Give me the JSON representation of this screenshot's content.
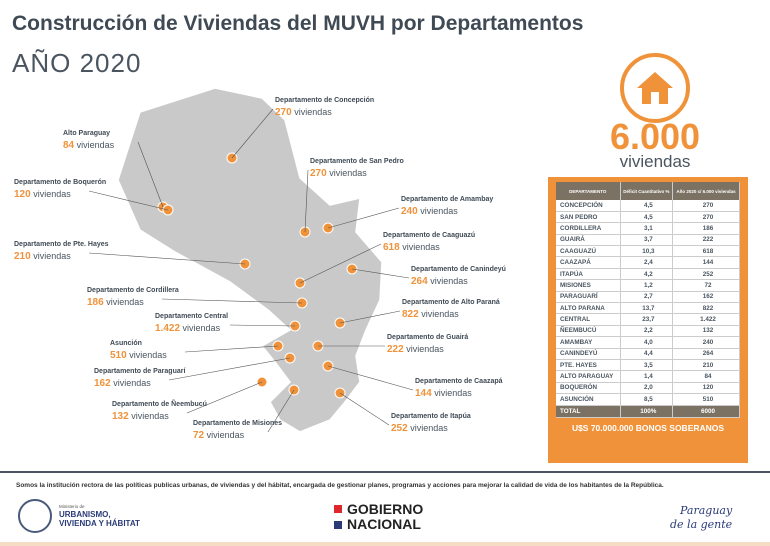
{
  "header": {
    "title": "Construcción de Viviendas del MUVH por Departamentos",
    "year": "AÑO 2020"
  },
  "summary": {
    "total": "6.000",
    "unit": "viviendas",
    "icon": "house-icon"
  },
  "colors": {
    "accent": "#f0923a",
    "map": "#c9c9c9",
    "dark": "#7b7264"
  },
  "map_labels": [
    {
      "name": "Departamento de Concepción",
      "count": "270",
      "unit": "viviendas"
    },
    {
      "name": "Alto Paraguay",
      "count": "84",
      "unit": "viviendas"
    },
    {
      "name": "Departamento de San Pedro",
      "count": "270",
      "unit": "viviendas"
    },
    {
      "name": "Departamento de Boquerón",
      "count": "120",
      "unit": "viviendas"
    },
    {
      "name": "Departamento de Amambay",
      "count": "240",
      "unit": "viviendas"
    },
    {
      "name": "Departamento de Caaguazú",
      "count": "618",
      "unit": "viviendas"
    },
    {
      "name": "Departamento de Pte. Hayes",
      "count": "210",
      "unit": "viviendas"
    },
    {
      "name": "Departamento de Canindeyú",
      "count": "264",
      "unit": "viviendas"
    },
    {
      "name": "Departamento de Cordillera",
      "count": "186",
      "unit": "viviendas"
    },
    {
      "name": "Departamento de Alto Paraná",
      "count": "822",
      "unit": "viviendas"
    },
    {
      "name": "Departamento Central",
      "count": "1.422",
      "unit": "viviendas"
    },
    {
      "name": "Asunción",
      "count": "510",
      "unit": "viviendas"
    },
    {
      "name": "Departamento de Guairá",
      "count": "222",
      "unit": "viviendas"
    },
    {
      "name": "Departamento de Paraguarí",
      "count": "162",
      "unit": "viviendas"
    },
    {
      "name": "Departamento de Caazapá",
      "count": "144",
      "unit": "viviendas"
    },
    {
      "name": "Departamento de Ñeembucú",
      "count": "132",
      "unit": "viviendas"
    },
    {
      "name": "Departamento de Misiones",
      "count": "72",
      "unit": "viviendas"
    },
    {
      "name": "Departamento de Itapúa",
      "count": "252",
      "unit": "viviendas"
    }
  ],
  "table": {
    "headers": [
      "DEPARTAMENTO",
      "Déficit Cuantitativo %",
      "Año 2020 c/ 6.000 viviendas"
    ],
    "rows": [
      [
        "CONCEPCIÓN",
        "4,5",
        "270"
      ],
      [
        "SAN PEDRO",
        "4,5",
        "270"
      ],
      [
        "CORDILLERA",
        "3,1",
        "186"
      ],
      [
        "GUAIRÁ",
        "3,7",
        "222"
      ],
      [
        "CAAGUAZÚ",
        "10,3",
        "618"
      ],
      [
        "CAAZAPÁ",
        "2,4",
        "144"
      ],
      [
        "ITAPÚA",
        "4,2",
        "252"
      ],
      [
        "MISIONES",
        "1,2",
        "72"
      ],
      [
        "PARAGUARÍ",
        "2,7",
        "162"
      ],
      [
        "ALTO PARANA",
        "13,7",
        "822"
      ],
      [
        "CENTRAL",
        "23,7",
        "1.422"
      ],
      [
        "ÑEEMBUCÚ",
        "2,2",
        "132"
      ],
      [
        "AMAMBAY",
        "4,0",
        "240"
      ],
      [
        "CANINDEYÚ",
        "4,4",
        "264"
      ],
      [
        "PTE. HAYES",
        "3,5",
        "210"
      ],
      [
        "ALTO PARAGUAY",
        "1,4",
        "84"
      ],
      [
        "BOQUERÓN",
        "2,0",
        "120"
      ],
      [
        "ASUNCIÓN",
        "8,5",
        "510"
      ]
    ],
    "total": [
      "TOTAL",
      "100%",
      "6000"
    ],
    "footer": "U$S 70.000.000 BONOS SOBERANOS"
  },
  "footer": {
    "mission": "Somos la institución rectora de las políticas publicas urbanas, de viviendas y del hábitat, encargada de gestionar planes, programas y acciones para mejorar la calidad de vida de los habitantes de la República.",
    "ministry_small": "Ministerio de",
    "ministry_line1": "URBANISMO,",
    "ministry_line2": "VIVIENDA Y HÁBITAT",
    "gobierno_line1": "GOBIERNO",
    "gobierno_line2": "NACIONAL",
    "slogan_line1": "Paraguay",
    "slogan_line2": "de la gente"
  }
}
